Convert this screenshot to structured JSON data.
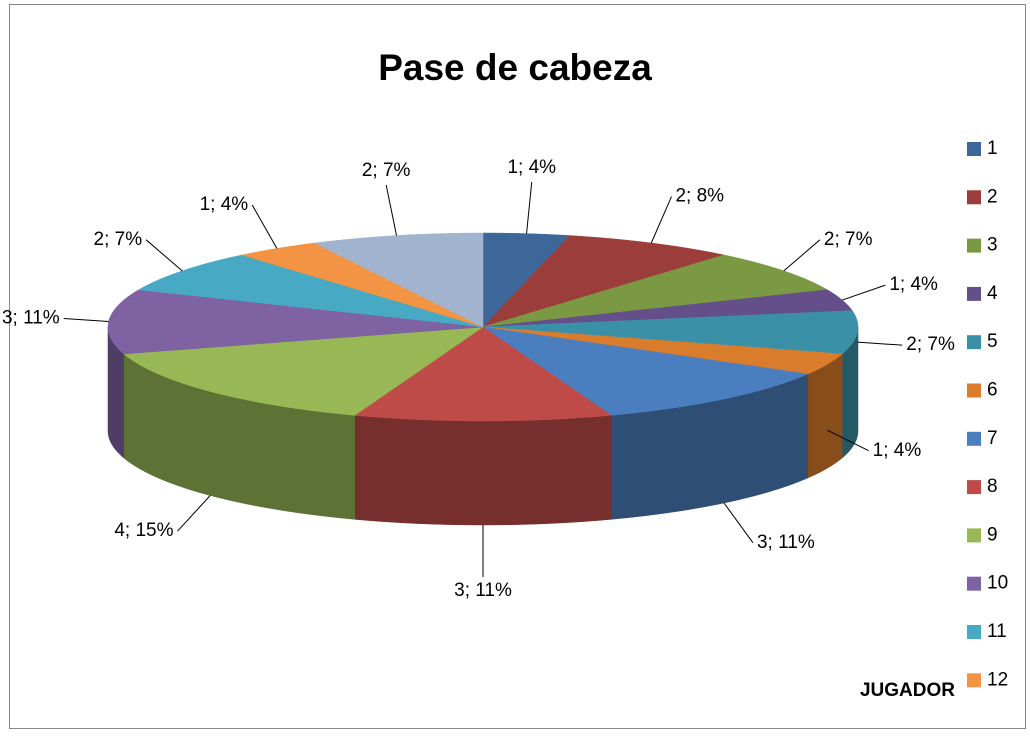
{
  "chart_data": {
    "type": "pie",
    "title": "Pase de cabeza",
    "legend_title": "JUGADOR",
    "categories": [
      "1",
      "2",
      "3",
      "4",
      "5",
      "6",
      "7",
      "8",
      "9",
      "10",
      "11",
      "12",
      null
    ],
    "values": [
      1,
      2,
      2,
      1,
      2,
      1,
      3,
      3,
      4,
      3,
      2,
      1,
      2
    ],
    "value_labels": [
      "1; 4%",
      "2; 8%",
      "2; 7%",
      "1; 4%",
      "2; 7%",
      "1; 4%",
      "3; 11%",
      "3; 11%",
      "4; 15%",
      "3; 11%",
      "2; 7%",
      "1; 4%",
      "2; 7%"
    ],
    "colors": [
      "#3d6799",
      "#9b3e3b",
      "#7b9942",
      "#654f8a",
      "#3a91a7",
      "#d97c2c",
      "#4a7ebf",
      "#bf4b48",
      "#98b856",
      "#7e62a1",
      "#48a9c4",
      "#f39344",
      "#a2b3cf"
    ],
    "legend": "right"
  }
}
